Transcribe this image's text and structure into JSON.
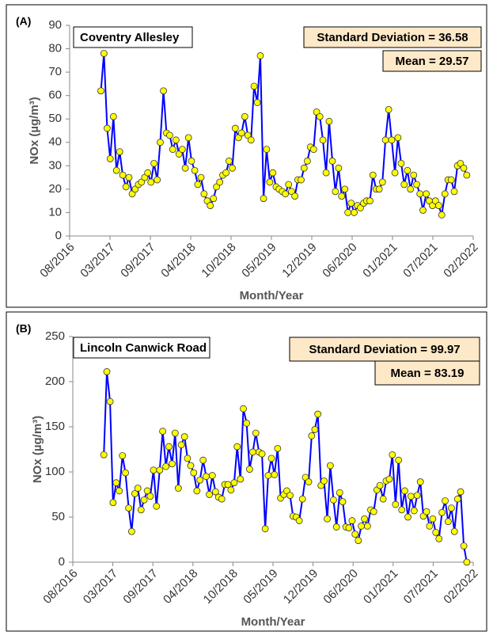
{
  "chart_data": [
    {
      "type": "line",
      "panel_label": "(A)",
      "title": "Coventry Allesley",
      "annotations": [
        "Standard Deviation = 36.58",
        "Mean = 29.57"
      ],
      "xlabel": "Month/Year",
      "ylabel": "NOx (µg/m³)",
      "xlim": [
        42600,
        44600
      ],
      "xticks": [
        {
          "value": 42600,
          "label": "08/2016"
        },
        {
          "value": 42800,
          "label": "03/2017"
        },
        {
          "value": 43000,
          "label": "09/2017"
        },
        {
          "value": 43200,
          "label": "04/2018"
        },
        {
          "value": 43400,
          "label": "10/2018"
        },
        {
          "value": 43600,
          "label": "05/2019"
        },
        {
          "value": 43800,
          "label": "12/2019"
        },
        {
          "value": 44000,
          "label": "06/2020"
        },
        {
          "value": 44200,
          "label": "01/2021"
        },
        {
          "value": 44400,
          "label": "07/2021"
        },
        {
          "value": 44600,
          "label": "02/2022"
        }
      ],
      "ylim": [
        0,
        90
      ],
      "yticks": [
        0,
        10,
        20,
        30,
        40,
        50,
        60,
        70,
        80,
        90
      ],
      "color": "#0000ff",
      "marker_color": "#ffff00",
      "x": [
        42755,
        42770,
        42786,
        42801,
        42817,
        42832,
        42848,
        42863,
        42879,
        42894,
        42910,
        42925,
        42941,
        42956,
        42972,
        42987,
        43003,
        43018,
        43034,
        43049,
        43065,
        43080,
        43096,
        43111,
        43127,
        43142,
        43158,
        43173,
        43189,
        43204,
        43220,
        43235,
        43251,
        43266,
        43282,
        43297,
        43313,
        43328,
        43344,
        43359,
        43375,
        43390,
        43406,
        43421,
        43437,
        43452,
        43468,
        43483,
        43499,
        43514,
        43530,
        43545,
        43561,
        43576,
        43592,
        43607,
        43623,
        43638,
        43654,
        43669,
        43685,
        43700,
        43716,
        43731,
        43747,
        43762,
        43778,
        43793,
        43809,
        43824,
        43840,
        43855,
        43871,
        43886,
        43902,
        43917,
        43933,
        43948,
        43964,
        43979,
        43995,
        44010,
        44026,
        44041,
        44057,
        44072,
        44088,
        44103,
        44119,
        44134,
        44150,
        44165,
        44181,
        44196,
        44212,
        44227,
        44243,
        44258,
        44274,
        44289,
        44305,
        44320,
        44336,
        44351,
        44367,
        44382,
        44398,
        44413,
        44429,
        44444,
        44460,
        44475,
        44491,
        44506,
        44522,
        44537,
        44553,
        44568
      ],
      "values": [
        62,
        78,
        46,
        33,
        51,
        28,
        36,
        26,
        21,
        25,
        18,
        20,
        22,
        23,
        25,
        27,
        23,
        31,
        24,
        40,
        62,
        44,
        43,
        37,
        41,
        35,
        37,
        29,
        42,
        32,
        28,
        22,
        25,
        18,
        15,
        13,
        16,
        21,
        23,
        26,
        27,
        32,
        29,
        46,
        42,
        44,
        51,
        43,
        41,
        64,
        57,
        77,
        16,
        37,
        23,
        27,
        21,
        20,
        19,
        18,
        22,
        19,
        17,
        24,
        24,
        29,
        32,
        38,
        37,
        53,
        51,
        41,
        27,
        49,
        32,
        19,
        29,
        17,
        20,
        10,
        14,
        10,
        13,
        12,
        14,
        15,
        15,
        26,
        20,
        20,
        23,
        41,
        54,
        41,
        27,
        42,
        31,
        22,
        28,
        20,
        26,
        22,
        18,
        11,
        18,
        15,
        13,
        15,
        13,
        9,
        18,
        24,
        24,
        19,
        30,
        31,
        29,
        26
      ]
    },
    {
      "type": "line",
      "panel_label": "(B)",
      "title": "Lincoln Canwick Road",
      "annotations": [
        "Standard Deviation = 99.97",
        "Mean = 83.19"
      ],
      "xlabel": "Month/Year",
      "ylabel": "NOx (µg/m³)",
      "xlim": [
        42600,
        44600
      ],
      "xticks": [
        {
          "value": 42600,
          "label": "08/2016"
        },
        {
          "value": 42800,
          "label": "03/2017"
        },
        {
          "value": 43000,
          "label": "09/2017"
        },
        {
          "value": 43200,
          "label": "04/2018"
        },
        {
          "value": 43400,
          "label": "10/2018"
        },
        {
          "value": 43600,
          "label": "05/2019"
        },
        {
          "value": 43800,
          "label": "12/2019"
        },
        {
          "value": 44000,
          "label": "06/2020"
        },
        {
          "value": 44200,
          "label": "01/2021"
        },
        {
          "value": 44400,
          "label": "07/2021"
        },
        {
          "value": 44600,
          "label": "02/2022"
        }
      ],
      "ylim": [
        0,
        250
      ],
      "yticks": [
        0,
        50,
        100,
        150,
        200,
        250
      ],
      "color": "#0000ff",
      "marker_color": "#ffff00",
      "x": [
        42755,
        42770,
        42786,
        42801,
        42817,
        42832,
        42848,
        42863,
        42879,
        42894,
        42910,
        42925,
        42941,
        42956,
        42972,
        42987,
        43003,
        43018,
        43034,
        43049,
        43065,
        43080,
        43096,
        43111,
        43127,
        43142,
        43158,
        43173,
        43189,
        43204,
        43220,
        43235,
        43251,
        43266,
        43282,
        43297,
        43313,
        43328,
        43344,
        43359,
        43375,
        43390,
        43406,
        43421,
        43437,
        43452,
        43468,
        43483,
        43499,
        43514,
        43530,
        43545,
        43561,
        43576,
        43592,
        43607,
        43623,
        43638,
        43654,
        43669,
        43685,
        43700,
        43716,
        43731,
        43747,
        43762,
        43778,
        43793,
        43809,
        43824,
        43840,
        43855,
        43871,
        43886,
        43902,
        43917,
        43933,
        43948,
        43964,
        43979,
        43995,
        44010,
        44026,
        44041,
        44057,
        44072,
        44088,
        44103,
        44119,
        44134,
        44150,
        44165,
        44181,
        44196,
        44212,
        44227,
        44243,
        44258,
        44274,
        44289,
        44305,
        44320,
        44336,
        44351,
        44367,
        44382,
        44398,
        44413,
        44429,
        44444,
        44460,
        44475,
        44491,
        44506,
        44522,
        44537,
        44553,
        44568
      ],
      "values": [
        119,
        211,
        178,
        66,
        88,
        79,
        118,
        99,
        60,
        34,
        76,
        82,
        58,
        69,
        79,
        73,
        102,
        62,
        102,
        145,
        106,
        128,
        109,
        143,
        82,
        130,
        139,
        115,
        107,
        99,
        79,
        91,
        113,
        95,
        75,
        96,
        78,
        72,
        70,
        86,
        86,
        80,
        88,
        128,
        92,
        170,
        154,
        103,
        122,
        143,
        122,
        120,
        37,
        96,
        115,
        97,
        126,
        71,
        75,
        79,
        74,
        51,
        50,
        46,
        70,
        94,
        89,
        140,
        147,
        164,
        85,
        90,
        48,
        107,
        69,
        39,
        77,
        67,
        39,
        38,
        46,
        31,
        24,
        40,
        48,
        40,
        58,
        56,
        80,
        85,
        70,
        90,
        92,
        119,
        64,
        113,
        58,
        79,
        50,
        73,
        57,
        74,
        89,
        51,
        56,
        40,
        48,
        33,
        26,
        55,
        68,
        45,
        60,
        34,
        70,
        78,
        18,
        0
      ]
    }
  ]
}
